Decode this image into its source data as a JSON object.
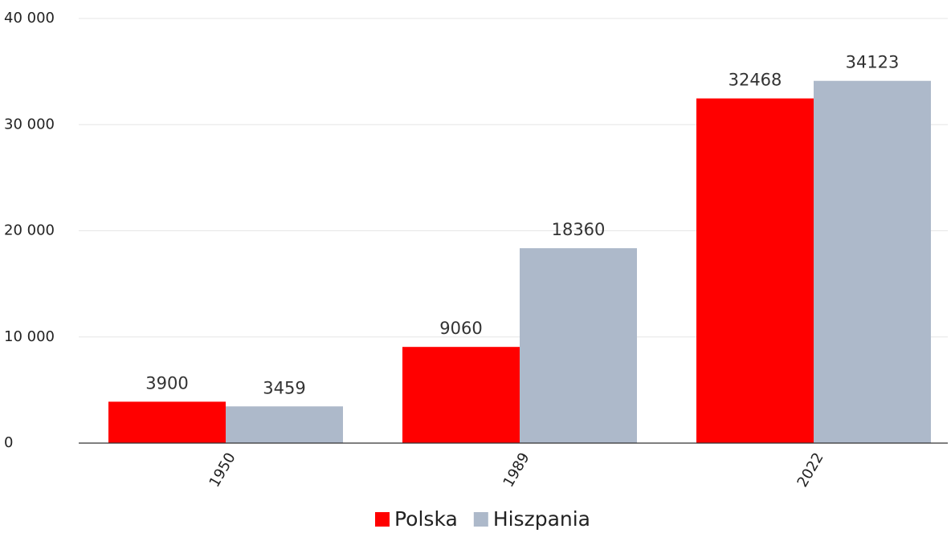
{
  "chart_data": {
    "type": "bar",
    "categories": [
      "1950",
      "1989",
      "2022"
    ],
    "series": [
      {
        "name": "Polska",
        "color": "#ff0000",
        "values": [
          3900,
          9060,
          32468
        ]
      },
      {
        "name": "Hiszpania",
        "color": "#adb9ca",
        "values": [
          3459,
          18360,
          34123
        ]
      }
    ],
    "ylim": [
      0,
      40000
    ],
    "yticks": [
      0,
      {
        "value": 10000,
        "label": "10 000"
      },
      {
        "value": 20000,
        "label": "20 000"
      },
      {
        "value": 30000,
        "label": "30 000"
      },
      {
        "value": 40000,
        "label": "40 000"
      }
    ],
    "grid": true,
    "legend": "bottom"
  }
}
